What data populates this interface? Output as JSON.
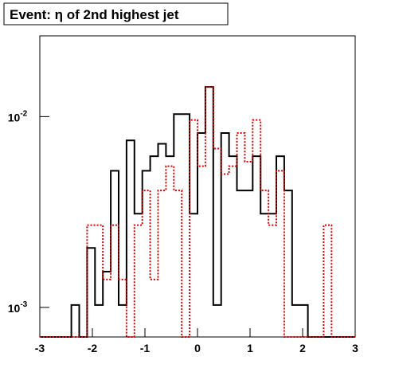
{
  "chart_data": {
    "type": "histogram",
    "title": "Event: η of 2nd highest jet",
    "bins": [
      -3,
      -2.85,
      -2.7,
      -2.55,
      -2.4,
      -2.25,
      -2.1,
      -1.95,
      -1.8,
      -1.65,
      -1.5,
      -1.35,
      -1.2,
      -1.05,
      -0.9,
      -0.75,
      -0.6,
      -0.45,
      -0.3,
      -0.15,
      0,
      0.15,
      0.3,
      0.45,
      0.6,
      0.75,
      0.9,
      1.05,
      1.2,
      1.35,
      1.5,
      1.65,
      1.8,
      1.95,
      2.1,
      2.25,
      2.4,
      2.55,
      2.7,
      2.85,
      3
    ],
    "series": [
      {
        "color": "#000000",
        "style": "solid",
        "values": [
          0,
          0,
          0,
          0,
          0.00103,
          0,
          0.00205,
          0.00103,
          0.00154,
          0.0052,
          0.00103,
          0.0075,
          0.0031,
          0.0052,
          0.0062,
          0.0072,
          0.0062,
          0.0103,
          0.0103,
          0.0031,
          0.0082,
          0.0143,
          0.00103,
          0.0082,
          0.0062,
          0.0041,
          0.0041,
          0.0062,
          0.0031,
          0.0031,
          0.0062,
          0.0041,
          0.00103,
          0.00103,
          0,
          0,
          0,
          0,
          0,
          0
        ]
      },
      {
        "color": "#dd0000",
        "style": "dotted",
        "values": [
          0,
          0,
          0,
          0,
          0,
          0,
          0.0027,
          0.0027,
          0.0014,
          0.0027,
          0.0014,
          0,
          0.0027,
          0.0041,
          0.0014,
          0.0041,
          0.0055,
          0.0041,
          0,
          0.0096,
          0.0055,
          0.0143,
          0.0068,
          0.005,
          0.0055,
          0.0082,
          0.0058,
          0.0096,
          0.0041,
          0.0027,
          0.0052,
          0,
          0,
          0,
          0,
          0,
          0.0027,
          0,
          0,
          0
        ]
      }
    ],
    "xlim": [
      -3,
      3
    ],
    "xticks": [
      -3,
      -2,
      -1,
      0,
      1,
      2,
      3
    ],
    "ylim": [
      0.0007,
      0.0265
    ],
    "log_y": true,
    "yticks": [
      {
        "value": 0.001,
        "label": "10",
        "exponent": "-3"
      },
      {
        "value": 0.01,
        "label": "10",
        "exponent": "-2"
      }
    ]
  }
}
